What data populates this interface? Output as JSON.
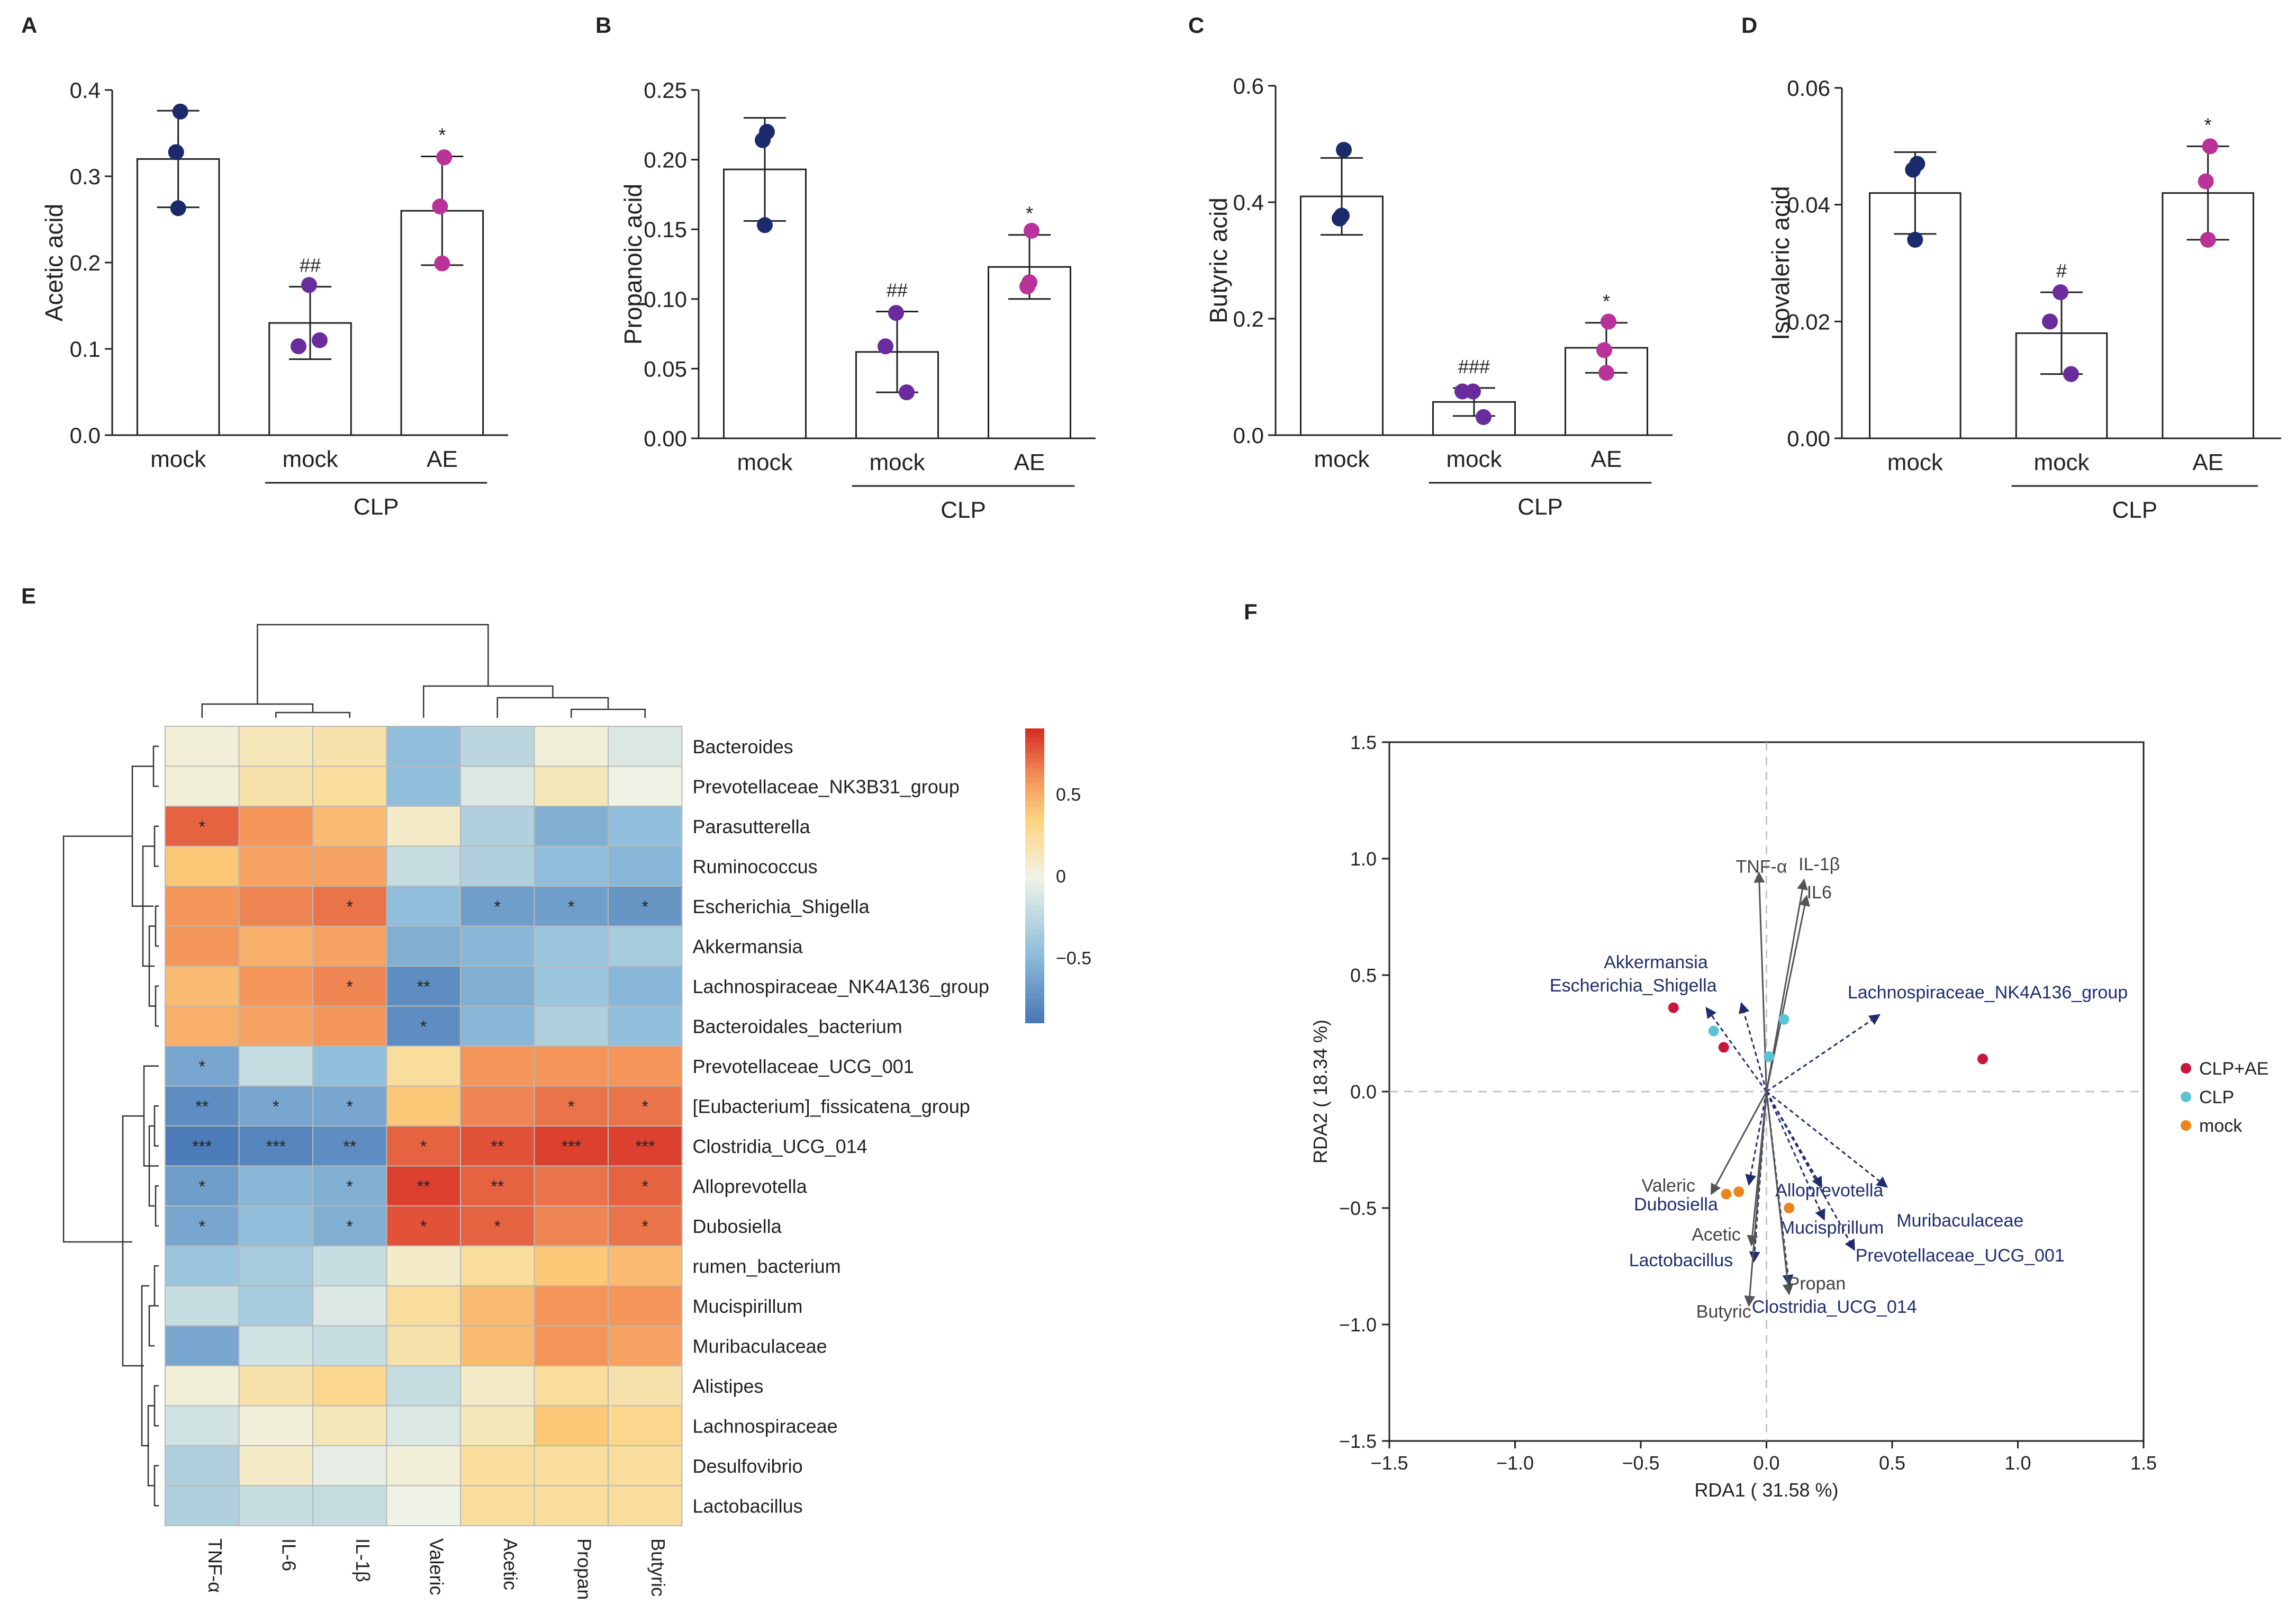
{
  "chart_data": [
    {
      "panel": "A",
      "type": "bar",
      "ylabel": "Acetic acid",
      "ylim": [
        0,
        0.4
      ],
      "yticks": [
        "0.0",
        "0.1",
        "0.2",
        "0.3",
        "0.4"
      ],
      "categories": [
        "mock",
        "mock",
        "AE"
      ],
      "group_label": "CLP",
      "values": [
        0.32,
        0.13,
        0.26
      ],
      "errors": [
        0.056,
        0.042,
        0.063
      ],
      "points": [
        [
          0.375,
          0.328,
          0.263
        ],
        [
          0.174,
          0.103,
          0.11
        ],
        [
          0.322,
          0.265,
          0.199
        ]
      ],
      "annotations": [
        "",
        "##",
        "*"
      ],
      "colors": [
        "#1b2a6b",
        "#6a2c9c",
        "#b8329a"
      ]
    },
    {
      "panel": "B",
      "type": "bar",
      "ylabel": "Propanoic acid",
      "ylim": [
        0,
        0.25
      ],
      "yticks": [
        "0.00",
        "0.05",
        "0.10",
        "0.15",
        "0.20",
        "0.25"
      ],
      "categories": [
        "mock",
        "mock",
        "AE"
      ],
      "group_label": "CLP",
      "values": [
        0.193,
        0.062,
        0.123
      ],
      "errors": [
        0.037,
        0.029,
        0.023
      ],
      "points": [
        [
          0.22,
          0.214,
          0.153
        ],
        [
          0.09,
          0.066,
          0.033
        ],
        [
          0.149,
          0.109,
          0.112
        ]
      ],
      "annotations": [
        "",
        "##",
        "*"
      ],
      "colors": [
        "#1b2a6b",
        "#6a2c9c",
        "#b8329a"
      ]
    },
    {
      "panel": "C",
      "type": "bar",
      "ylabel": "Butyric acid",
      "ylim": [
        0,
        0.6
      ],
      "yticks": [
        "0.0",
        "0.2",
        "0.4",
        "0.6"
      ],
      "categories": [
        "mock",
        "mock",
        "AE"
      ],
      "group_label": "CLP",
      "values": [
        0.41,
        0.057,
        0.15
      ],
      "errors": [
        0.066,
        0.024,
        0.043
      ],
      "points": [
        [
          0.49,
          0.372,
          0.377
        ],
        [
          0.075,
          0.075,
          0.031
        ],
        [
          0.195,
          0.146,
          0.107
        ]
      ],
      "annotations": [
        "",
        "###",
        "*"
      ],
      "colors": [
        "#1b2a6b",
        "#6a2c9c",
        "#b8329a"
      ]
    },
    {
      "panel": "D",
      "type": "bar",
      "ylabel": "Isovaleric acid",
      "ylim": [
        0,
        0.06
      ],
      "yticks": [
        "0.00",
        "0.02",
        "0.04",
        "0.06"
      ],
      "categories": [
        "mock",
        "mock",
        "AE"
      ],
      "group_label": "CLP",
      "values": [
        0.042,
        0.018,
        0.042
      ],
      "errors": [
        0.007,
        0.007,
        0.008
      ],
      "points": [
        [
          0.047,
          0.046,
          0.034
        ],
        [
          0.025,
          0.02,
          0.011
        ],
        [
          0.05,
          0.044,
          0.034
        ]
      ],
      "annotations": [
        "",
        "#",
        "*"
      ],
      "colors": [
        "#1b2a6b",
        "#6a2c9c",
        "#b8329a"
      ]
    },
    {
      "panel": "E",
      "type": "heatmap",
      "columns": [
        "TNF-α",
        "IL-6",
        "IL-1β",
        "Valeric",
        "Acetic",
        "Propan",
        "Butyric"
      ],
      "rows": [
        "Bacteroides",
        "Prevotellaceae_NK3B31_group",
        "Parasutterella",
        "Ruminococcus",
        "Escherichia_Shigella",
        "Akkermansia",
        "Lachnospiraceae_NK4A136_group",
        "Bacteroidales_bacterium",
        "Prevotellaceae_UCG_001",
        "[Eubacterium]_fissicatena_group",
        "Clostridia_UCG_014",
        "Alloprevotella",
        "Dubosiella",
        "rumen_bacterium",
        "Mucispirillum",
        "Muribaculaceae",
        "Alistipes",
        "Lachnospiraceae",
        "Desulfovibrio",
        "Lactobacillus"
      ],
      "values": [
        [
          0.05,
          0.15,
          0.2,
          -0.45,
          -0.25,
          0.05,
          -0.1
        ],
        [
          0.05,
          0.2,
          0.25,
          -0.45,
          -0.1,
          0.15,
          0.0
        ],
        [
          0.75,
          0.6,
          0.45,
          0.1,
          -0.3,
          -0.55,
          -0.45
        ],
        [
          0.4,
          0.55,
          0.55,
          -0.2,
          -0.3,
          -0.45,
          -0.5
        ],
        [
          0.6,
          0.65,
          0.7,
          -0.45,
          -0.65,
          -0.65,
          -0.7
        ],
        [
          0.6,
          0.5,
          0.55,
          -0.55,
          -0.5,
          -0.4,
          -0.35
        ],
        [
          0.45,
          0.6,
          0.65,
          -0.75,
          -0.55,
          -0.4,
          -0.5
        ],
        [
          0.5,
          0.55,
          0.6,
          -0.75,
          -0.5,
          -0.3,
          -0.45
        ],
        [
          -0.6,
          -0.2,
          -0.45,
          0.25,
          0.6,
          0.6,
          0.6
        ],
        [
          -0.75,
          -0.6,
          -0.6,
          0.4,
          0.65,
          0.7,
          0.7
        ],
        [
          -0.85,
          -0.8,
          -0.75,
          0.75,
          0.8,
          0.85,
          0.85
        ],
        [
          -0.65,
          -0.5,
          -0.55,
          0.85,
          0.75,
          0.7,
          0.75
        ],
        [
          -0.6,
          -0.45,
          -0.55,
          0.8,
          0.75,
          0.65,
          0.7
        ],
        [
          -0.4,
          -0.35,
          -0.2,
          0.1,
          0.25,
          0.4,
          0.45
        ],
        [
          -0.2,
          -0.35,
          -0.1,
          0.25,
          0.45,
          0.6,
          0.6
        ],
        [
          -0.6,
          -0.15,
          -0.2,
          0.2,
          0.45,
          0.6,
          0.55
        ],
        [
          0.05,
          0.2,
          0.3,
          -0.2,
          0.1,
          0.25,
          0.2
        ],
        [
          -0.15,
          0.05,
          0.15,
          -0.1,
          0.15,
          0.4,
          0.3
        ],
        [
          -0.3,
          0.1,
          -0.05,
          0.05,
          0.25,
          0.25,
          0.25
        ],
        [
          -0.3,
          -0.2,
          -0.2,
          0.0,
          0.25,
          0.25,
          0.25
        ]
      ],
      "stars": [
        [
          "",
          "",
          "",
          "",
          "",
          "",
          ""
        ],
        [
          "",
          "",
          "",
          "",
          "",
          "",
          ""
        ],
        [
          "*",
          "",
          "",
          "",
          "",
          "",
          ""
        ],
        [
          "",
          "",
          "",
          "",
          "",
          "",
          ""
        ],
        [
          "",
          "",
          "*",
          "",
          "*",
          "*",
          "*"
        ],
        [
          "",
          "",
          "",
          "",
          "",
          "",
          ""
        ],
        [
          "",
          "",
          "*",
          "**",
          "",
          "",
          ""
        ],
        [
          "",
          "",
          "",
          "*",
          "",
          "",
          ""
        ],
        [
          "*",
          "",
          "",
          "",
          "",
          "",
          ""
        ],
        [
          "**",
          "*",
          "*",
          "",
          "",
          "*",
          "*"
        ],
        [
          "***",
          "***",
          "**",
          "*",
          "**",
          "***",
          "***"
        ],
        [
          "*",
          "",
          "*",
          "**",
          "**",
          "",
          "*"
        ],
        [
          "*",
          "",
          "*",
          "*",
          "*",
          "",
          "*"
        ],
        [
          "",
          "",
          "",
          "",
          "",
          "",
          ""
        ],
        [
          "",
          "",
          "",
          "",
          "",
          "",
          ""
        ],
        [
          "",
          "",
          "",
          "",
          "",
          "",
          ""
        ],
        [
          "",
          "",
          "",
          "",
          "",
          "",
          ""
        ],
        [
          "",
          "",
          "",
          "",
          "",
          "",
          ""
        ],
        [
          "",
          "",
          "",
          "",
          "",
          "",
          ""
        ],
        [
          "",
          "",
          "",
          "",
          "",
          "",
          ""
        ]
      ],
      "colorbar_ticks": [
        "0.5",
        "0",
        "−0.5"
      ],
      "colorbar_tick_values": [
        0.5,
        0,
        -0.5
      ],
      "vmin": -0.9,
      "vmax": 0.9
    },
    {
      "panel": "F",
      "type": "scatter",
      "xlabel": "RDA1 ( 31.58 %)",
      "ylabel": "RDA2 ( 18.34 %)",
      "xlim": [
        -1.5,
        1.5
      ],
      "ylim": [
        -1.5,
        1.5
      ],
      "xticks": [
        "−1.5",
        "−1.0",
        "−0.5",
        "0.0",
        "0.5",
        "1.0",
        "1.5"
      ],
      "yticks": [
        "1.5",
        "1.0",
        "0.5",
        "0.0",
        "−0.5",
        "−1.0",
        "−1.5"
      ],
      "tick_values": [
        -1.5,
        -1.0,
        -0.5,
        0.0,
        0.5,
        1.0,
        1.5
      ],
      "legend": [
        {
          "label": "CLP+AE",
          "color": "#c8173c"
        },
        {
          "label": "CLP",
          "color": "#5ac3d4"
        },
        {
          "label": "mock",
          "color": "#e8861c"
        }
      ],
      "points": [
        {
          "group": 0,
          "x": -0.37,
          "y": 0.36
        },
        {
          "group": 0,
          "x": -0.17,
          "y": 0.19
        },
        {
          "group": 0,
          "x": 0.86,
          "y": 0.14
        },
        {
          "group": 1,
          "x": -0.21,
          "y": 0.26
        },
        {
          "group": 1,
          "x": 0.07,
          "y": 0.31
        },
        {
          "group": 1,
          "x": 0.01,
          "y": 0.15
        },
        {
          "group": 2,
          "x": -0.16,
          "y": -0.44
        },
        {
          "group": 2,
          "x": -0.11,
          "y": -0.43
        },
        {
          "group": 2,
          "x": 0.09,
          "y": -0.5
        }
      ],
      "env_vectors": [
        {
          "label": "TNF-α",
          "x": -0.03,
          "y": 0.94,
          "lx": -0.02,
          "ly": 0.94
        },
        {
          "label": "IL-1β",
          "x": 0.15,
          "y": 0.91,
          "lx": 0.21,
          "ly": 0.95
        },
        {
          "label": "IL6",
          "x": 0.16,
          "y": 0.84,
          "lx": 0.21,
          "ly": 0.83
        },
        {
          "label": "Valeric",
          "x": -0.22,
          "y": -0.44,
          "lx": -0.39,
          "ly": -0.43
        },
        {
          "label": "Acetic",
          "x": -0.06,
          "y": -0.66,
          "lx": -0.2,
          "ly": -0.64
        },
        {
          "label": "Propan",
          "x": 0.09,
          "y": -0.87,
          "lx": 0.2,
          "ly": -0.85
        },
        {
          "label": "Butyric",
          "x": -0.07,
          "y": -0.92,
          "lx": -0.17,
          "ly": -0.97
        }
      ],
      "species_vectors": [
        {
          "label": "Akkermansia",
          "x": -0.1,
          "y": 0.38,
          "lx": -0.44,
          "ly": 0.53
        },
        {
          "label": "Escherichia_Shigella",
          "x": -0.24,
          "y": 0.36,
          "lx": -0.53,
          "ly": 0.43
        },
        {
          "label": "Lachnospiraceae_NK4A136_group",
          "x": 0.45,
          "y": 0.33,
          "lx": 0.88,
          "ly": 0.4
        },
        {
          "label": "Alloprevotella",
          "x": 0.22,
          "y": -0.41,
          "lx": 0.25,
          "ly": -0.45
        },
        {
          "label": "Muribaculaceae",
          "x": 0.48,
          "y": -0.41,
          "lx": 0.77,
          "ly": -0.58
        },
        {
          "label": "Mucispirillum",
          "x": 0.23,
          "y": -0.55,
          "lx": 0.26,
          "ly": -0.61
        },
        {
          "label": "Prevotellaceae_UCG_001",
          "x": 0.35,
          "y": -0.68,
          "lx": 0.77,
          "ly": -0.73
        },
        {
          "label": "Dubosiella",
          "x": -0.07,
          "y": -0.4,
          "lx": -0.36,
          "ly": -0.51
        },
        {
          "label": "Lactobacillus",
          "x": -0.05,
          "y": -0.73,
          "lx": -0.34,
          "ly": -0.75
        },
        {
          "label": "Clostridia_UCG_014",
          "x": 0.09,
          "y": -0.83,
          "lx": 0.27,
          "ly": -0.95
        }
      ]
    }
  ]
}
